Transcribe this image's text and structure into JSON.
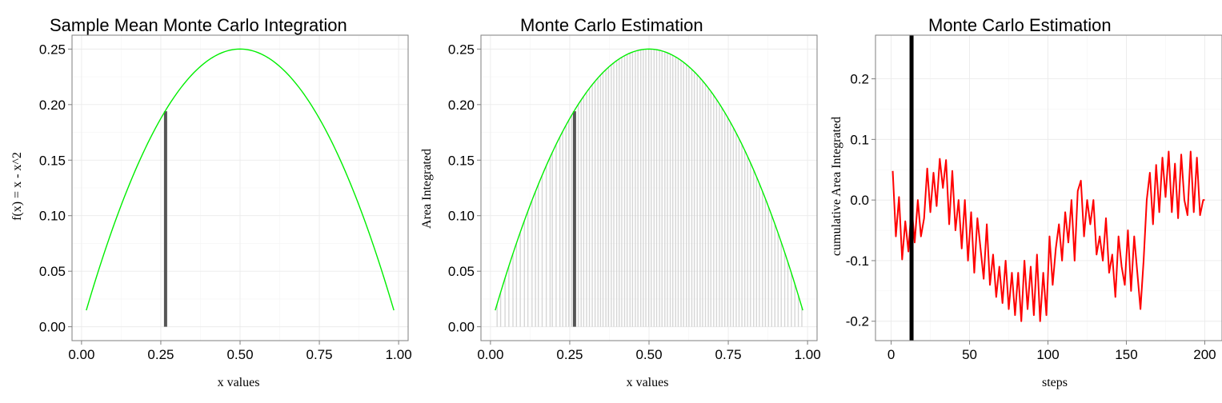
{
  "chart_data": [
    {
      "type": "line",
      "title": "Sample Mean Monte Carlo Integration",
      "xlabel": "x values",
      "ylabel": "f(x) = x - x^2",
      "xlim": [
        -0.03,
        1.03
      ],
      "ylim": [
        -0.0125,
        0.2625
      ],
      "xticks": [
        0.0,
        0.25,
        0.5,
        0.75,
        1.0
      ],
      "xtick_labels": [
        "0.00",
        "0.25",
        "0.50",
        "0.75",
        "1.00"
      ],
      "yticks": [
        0.0,
        0.05,
        0.1,
        0.15,
        0.2,
        0.25
      ],
      "ytick_labels": [
        "0.00",
        "0.05",
        "0.10",
        "0.15",
        "0.20",
        "0.25"
      ],
      "curve": {
        "function": "x - x^2",
        "x_range": [
          0.015,
          0.985
        ],
        "color": "#00ee00"
      },
      "highlight_segment": {
        "x": 0.265,
        "y": 0.194,
        "color": "#555555"
      },
      "grid": true
    },
    {
      "type": "line",
      "title": "Monte Carlo Estimation",
      "xlabel": "x values",
      "ylabel": "Area Integrated",
      "xlim": [
        -0.03,
        1.03
      ],
      "ylim": [
        -0.0125,
        0.2625
      ],
      "xticks": [
        0.0,
        0.25,
        0.5,
        0.75,
        1.0
      ],
      "xtick_labels": [
        "0.00",
        "0.25",
        "0.50",
        "0.75",
        "1.00"
      ],
      "yticks": [
        0.0,
        0.05,
        0.1,
        0.15,
        0.2,
        0.25
      ],
      "ytick_labels": [
        "0.00",
        "0.05",
        "0.10",
        "0.15",
        "0.20",
        "0.25"
      ],
      "curve": {
        "function": "x - x^2",
        "x_range": [
          0.015,
          0.985
        ],
        "color": "#00ee00"
      },
      "sample_segments_x": [
        0.021,
        0.032,
        0.046,
        0.058,
        0.071,
        0.082,
        0.094,
        0.107,
        0.118,
        0.131,
        0.142,
        0.151,
        0.163,
        0.176,
        0.188,
        0.195,
        0.207,
        0.219,
        0.228,
        0.238,
        0.247,
        0.256,
        0.265,
        0.277,
        0.286,
        0.294,
        0.303,
        0.312,
        0.321,
        0.33,
        0.339,
        0.347,
        0.355,
        0.364,
        0.372,
        0.381,
        0.389,
        0.398,
        0.406,
        0.414,
        0.423,
        0.431,
        0.44,
        0.448,
        0.457,
        0.465,
        0.474,
        0.482,
        0.49,
        0.499,
        0.507,
        0.516,
        0.524,
        0.533,
        0.541,
        0.55,
        0.558,
        0.567,
        0.575,
        0.584,
        0.592,
        0.601,
        0.609,
        0.618,
        0.626,
        0.635,
        0.643,
        0.652,
        0.661,
        0.669,
        0.678,
        0.687,
        0.695,
        0.704,
        0.713,
        0.722,
        0.73,
        0.739,
        0.748,
        0.757,
        0.766,
        0.775,
        0.784,
        0.793,
        0.802,
        0.811,
        0.82,
        0.83,
        0.839,
        0.848,
        0.858,
        0.867,
        0.877,
        0.887,
        0.897,
        0.907,
        0.917,
        0.928,
        0.938,
        0.949,
        0.96,
        0.971,
        0.982
      ],
      "sample_segments_color": "#c8c8c8",
      "highlight_segment": {
        "x": 0.265,
        "y": 0.194,
        "color": "#555555"
      },
      "grid": true
    },
    {
      "type": "line",
      "title": "Monte Carlo Estimation",
      "xlabel": "steps",
      "ylabel": "cumulative Area Integrated",
      "xlim": [
        -10,
        211
      ],
      "ylim": [
        -0.232,
        0.272
      ],
      "xticks": [
        0,
        50,
        100,
        150,
        200
      ],
      "xtick_labels": [
        "0",
        "50",
        "100",
        "150",
        "200"
      ],
      "yticks": [
        -0.2,
        -0.1,
        0.0,
        0.1,
        0.2
      ],
      "ytick_labels": [
        "-0.2",
        "-0.1",
        "0.0",
        "0.1",
        "0.2"
      ],
      "series": [
        {
          "color": "#ff0000",
          "x": [
            1,
            3,
            5,
            7,
            9,
            11,
            13,
            15,
            17,
            19,
            21,
            23,
            25,
            27,
            29,
            31,
            33,
            35,
            37,
            39,
            41,
            43,
            45,
            47,
            49,
            51,
            53,
            55,
            57,
            59,
            61,
            63,
            65,
            67,
            69,
            71,
            73,
            75,
            77,
            79,
            81,
            83,
            85,
            87,
            89,
            91,
            93,
            95,
            97,
            99,
            101,
            103,
            105,
            107,
            109,
            111,
            113,
            115,
            117,
            119,
            121,
            123,
            125,
            127,
            129,
            131,
            133,
            135,
            137,
            139,
            141,
            143,
            145,
            147,
            149,
            151,
            153,
            155,
            157,
            159,
            161,
            163,
            165,
            167,
            169,
            171,
            173,
            175,
            177,
            179,
            181,
            183,
            185,
            187,
            189,
            191,
            193,
            195,
            197,
            199,
            200
          ],
          "values": [
            0.048,
            -0.06,
            0.005,
            -0.098,
            -0.035,
            -0.085,
            -0.01,
            -0.07,
            0.0,
            -0.06,
            -0.03,
            0.052,
            -0.02,
            0.045,
            -0.01,
            0.068,
            0.02,
            0.066,
            -0.04,
            0.048,
            -0.05,
            0.0,
            -0.08,
            0.0,
            -0.1,
            -0.02,
            -0.12,
            -0.03,
            -0.08,
            -0.13,
            -0.04,
            -0.14,
            -0.09,
            -0.16,
            -0.11,
            -0.17,
            -0.1,
            -0.18,
            -0.12,
            -0.19,
            -0.12,
            -0.2,
            -0.1,
            -0.18,
            -0.11,
            -0.19,
            -0.09,
            -0.2,
            -0.12,
            -0.19,
            -0.06,
            -0.14,
            -0.08,
            -0.04,
            -0.1,
            -0.02,
            -0.07,
            0.0,
            -0.1,
            0.015,
            0.032,
            -0.06,
            0.0,
            -0.04,
            0.0,
            -0.09,
            -0.06,
            -0.1,
            -0.03,
            -0.12,
            -0.09,
            -0.16,
            -0.06,
            -0.11,
            -0.14,
            -0.05,
            -0.15,
            -0.06,
            -0.12,
            -0.18,
            -0.1,
            0.0,
            0.045,
            -0.04,
            0.058,
            -0.02,
            0.07,
            0.005,
            0.08,
            -0.02,
            0.06,
            -0.03,
            0.075,
            0.0,
            -0.025,
            0.08,
            -0.02,
            0.07,
            -0.025,
            0.0,
            0.0
          ]
        }
      ],
      "vline": {
        "x": 13,
        "color": "#000000"
      },
      "grid": true
    }
  ]
}
